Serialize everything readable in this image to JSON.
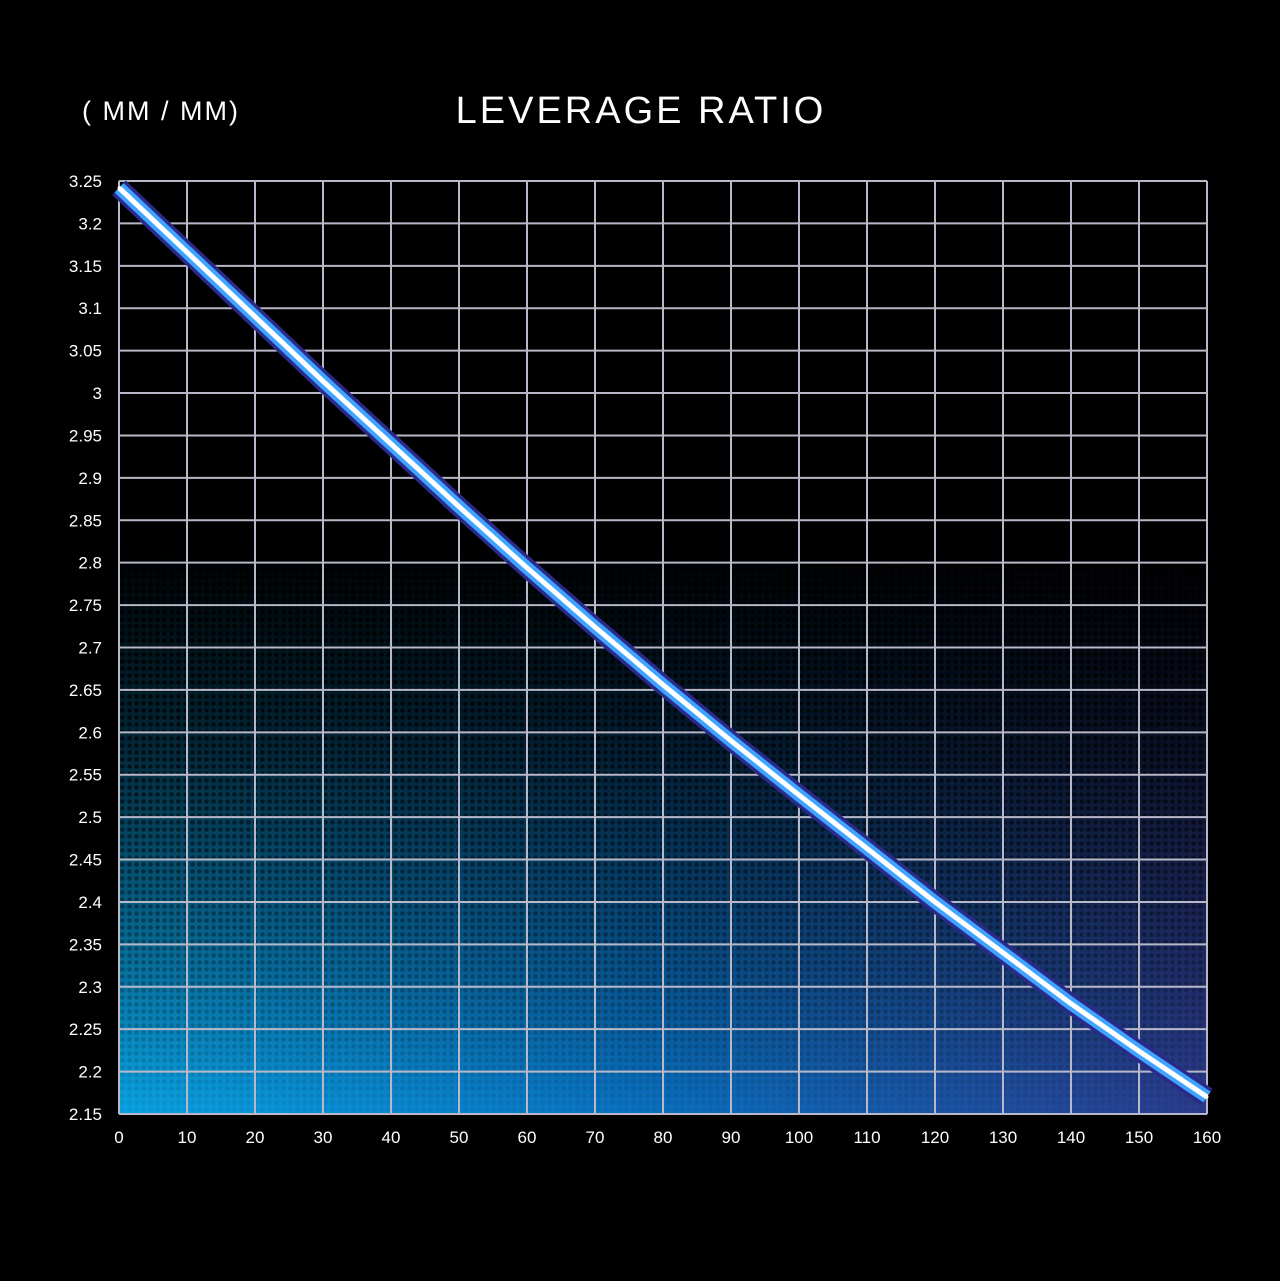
{
  "chart_data": {
    "type": "line",
    "title": "LEVERAGE RATIO",
    "ylabel": "( MM / MM)",
    "xlabel": "",
    "xlim": [
      0,
      160
    ],
    "ylim": [
      2.15,
      3.25
    ],
    "x_ticks": [
      "0",
      "10",
      "20",
      "30",
      "40",
      "50",
      "60",
      "70",
      "80",
      "90",
      "100",
      "110",
      "120",
      "130",
      "140",
      "150",
      "160"
    ],
    "y_ticks": [
      "3.25",
      "3.2",
      "3.15",
      "3.1",
      "3.05",
      "3",
      "2.95",
      "2.9",
      "2.85",
      "2.8",
      "2.75",
      "2.7",
      "2.65",
      "2.6",
      "2.55",
      "2.5",
      "2.45",
      "2.4",
      "2.35",
      "2.3",
      "2.25",
      "2.2",
      "2.15"
    ],
    "grid": true,
    "series": [
      {
        "x": [
          0,
          10,
          20,
          30,
          40,
          50,
          60,
          70,
          80,
          90,
          100,
          110,
          120,
          130,
          140,
          150,
          160
        ],
        "y": [
          3.242,
          3.166,
          3.09,
          3.014,
          2.94,
          2.866,
          2.794,
          2.724,
          2.656,
          2.59,
          2.526,
          2.463,
          2.4,
          2.34,
          2.28,
          2.224,
          2.17
        ]
      }
    ],
    "colors": {
      "background": "#000000",
      "gradient_top": "#1b1f5e",
      "gradient_bottom_left": "#0a9fe0",
      "gradient_bottom_right": "#2a3c8c",
      "line_core": "#ffffff",
      "line_glow": "#3fa4ff",
      "line_outline": "#2a2a8a",
      "grid": "#b8b8c8"
    }
  }
}
